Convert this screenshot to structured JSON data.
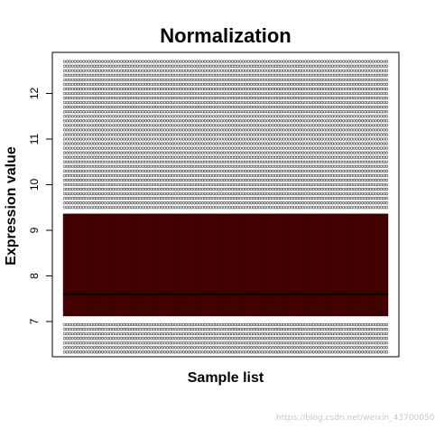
{
  "chart_data": {
    "type": "boxplot",
    "title": "Normalization",
    "xlabel": "Sample list",
    "ylabel": "Expression value",
    "ylim": [
      6.35,
      12.85
    ],
    "yticks": [
      7,
      8,
      9,
      10,
      11,
      12
    ],
    "grid": false,
    "n_samples": 120,
    "box_color": "#4a0000",
    "median_color": "#000000",
    "outlier_color": "#555555",
    "box": {
      "q1": 7.12,
      "median": 7.6,
      "q3": 9.36
    },
    "lower_outlier_levels": [
      6.33,
      6.43,
      6.53,
      6.63,
      6.73,
      6.83,
      6.93
    ],
    "upper_outlier_levels": [
      9.5,
      9.6,
      9.7,
      9.8,
      9.9,
      10.0,
      10.1,
      10.2,
      10.3,
      10.4,
      10.5,
      10.6,
      10.7,
      10.8,
      10.9,
      11.0,
      11.1,
      11.2,
      11.3,
      11.4,
      11.5,
      11.6,
      11.7,
      11.8,
      11.9,
      12.0,
      12.1,
      12.2,
      12.3,
      12.4,
      12.5,
      12.6,
      12.7
    ]
  },
  "watermark": "https://blog.csdn.net/weixin_43700050"
}
